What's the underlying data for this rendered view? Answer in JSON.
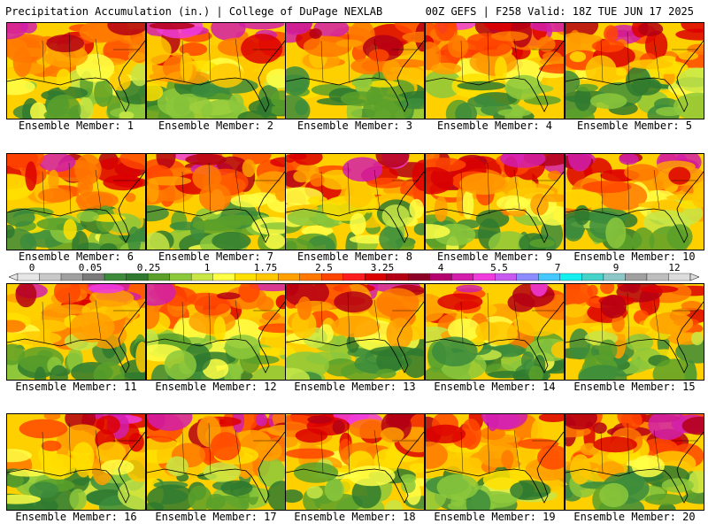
{
  "header": {
    "title_left": "Precipitation Accumulation (in.) | College of DuPage NEXLAB",
    "title_right": "00Z GEFS | F258 Valid: 18Z TUE JUN 17 2025"
  },
  "panels": [
    {
      "label": "Ensemble Member: 1"
    },
    {
      "label": "Ensemble Member: 2"
    },
    {
      "label": "Ensemble Member: 3"
    },
    {
      "label": "Ensemble Member: 4"
    },
    {
      "label": "Ensemble Member: 5"
    },
    {
      "label": "Ensemble Member: 6"
    },
    {
      "label": "Ensemble Member: 7"
    },
    {
      "label": "Ensemble Member: 8"
    },
    {
      "label": "Ensemble Member: 9"
    },
    {
      "label": "Ensemble Member: 10"
    },
    {
      "label": "Ensemble Member: 11"
    },
    {
      "label": "Ensemble Member: 12"
    },
    {
      "label": "Ensemble Member: 13"
    },
    {
      "label": "Ensemble Member: 14"
    },
    {
      "label": "Ensemble Member: 15"
    },
    {
      "label": "Ensemble Member: 16"
    },
    {
      "label": "Ensemble Member: 17"
    },
    {
      "label": "Ensemble Member: 18"
    },
    {
      "label": "Ensemble Member: 19"
    },
    {
      "label": "Ensemble Member: 20"
    }
  ],
  "legend": {
    "labels": [
      "0",
      "0.05",
      "0.25",
      "1",
      "1.75",
      "2.5",
      "3.25",
      "4",
      "5.5",
      "7",
      "9",
      "12"
    ],
    "colors": [
      "#e6e6e6",
      "#c8c8c8",
      "#a0a0a0",
      "#7a7a7a",
      "#3c8c3c",
      "#2f7a2f",
      "#5aa02a",
      "#8cc83c",
      "#c8e646",
      "#ffff46",
      "#ffe000",
      "#ffc800",
      "#ffa000",
      "#ff7800",
      "#ff4600",
      "#ff1e1e",
      "#dc0000",
      "#b40014",
      "#8c0028",
      "#b4006e",
      "#d21eaa",
      "#f03cdc",
      "#c85af0",
      "#8c8cff",
      "#46c8ff",
      "#14f0f0",
      "#46d2c8",
      "#8cc8c8",
      "#a0a0a0",
      "#bebebe",
      "#dcdcdc"
    ]
  }
}
